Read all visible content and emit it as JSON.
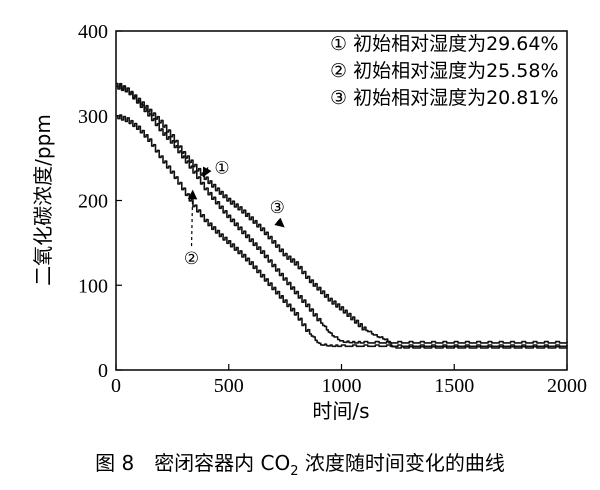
{
  "caption": {
    "figure_no": "图 8",
    "text_before_sub": "密闭容器内 CO",
    "subscript": "2",
    "text_after_sub": " 浓度随时间变化的曲线"
  },
  "chart_data": {
    "type": "line",
    "xlabel": "时间/s",
    "ylabel": "二氧化碳浓度/ppm",
    "xlim": [
      0,
      2000
    ],
    "ylim": [
      0,
      400
    ],
    "x_ticks": [
      0,
      500,
      1000,
      1500,
      2000
    ],
    "y_ticks": [
      0,
      100,
      200,
      300,
      400
    ],
    "legend_position": "top-right",
    "series": [
      {
        "name": "① 初始相对湿度为29.64%",
        "marker": "①",
        "points": [
          [
            0,
            335
          ],
          [
            50,
            330
          ],
          [
            100,
            315
          ],
          [
            150,
            300
          ],
          [
            200,
            282
          ],
          [
            250,
            268
          ],
          [
            300,
            250
          ],
          [
            350,
            232
          ],
          [
            400,
            212
          ],
          [
            450,
            196
          ],
          [
            500,
            180
          ],
          [
            550,
            166
          ],
          [
            600,
            152
          ],
          [
            650,
            138
          ],
          [
            700,
            122
          ],
          [
            750,
            106
          ],
          [
            800,
            90
          ],
          [
            850,
            75
          ],
          [
            900,
            58
          ],
          [
            950,
            42
          ],
          [
            1000,
            33
          ],
          [
            1050,
            32
          ],
          [
            1100,
            32
          ],
          [
            1200,
            32
          ],
          [
            1300,
            32
          ],
          [
            1400,
            32
          ],
          [
            1500,
            32
          ],
          [
            1600,
            32
          ],
          [
            1700,
            32
          ],
          [
            1800,
            32
          ],
          [
            1900,
            32
          ],
          [
            2000,
            32
          ]
        ]
      },
      {
        "name": "② 初始相对湿度为25.58%",
        "marker": "②",
        "points": [
          [
            0,
            300
          ],
          [
            50,
            295
          ],
          [
            100,
            285
          ],
          [
            150,
            270
          ],
          [
            200,
            250
          ],
          [
            250,
            232
          ],
          [
            300,
            212
          ],
          [
            350,
            192
          ],
          [
            400,
            175
          ],
          [
            450,
            162
          ],
          [
            500,
            150
          ],
          [
            550,
            138
          ],
          [
            600,
            125
          ],
          [
            650,
            110
          ],
          [
            700,
            95
          ],
          [
            750,
            80
          ],
          [
            800,
            65
          ],
          [
            850,
            45
          ],
          [
            900,
            30
          ],
          [
            950,
            28
          ],
          [
            1000,
            28
          ],
          [
            1100,
            28
          ],
          [
            1200,
            28
          ],
          [
            1300,
            28
          ],
          [
            1400,
            28
          ],
          [
            1500,
            28
          ],
          [
            1600,
            28
          ],
          [
            1700,
            28
          ],
          [
            1800,
            28
          ],
          [
            1900,
            28
          ],
          [
            2000,
            28
          ]
        ]
      },
      {
        "name": "③ 初始相对湿度为20.81%",
        "marker": "③",
        "points": [
          [
            0,
            338
          ],
          [
            50,
            330
          ],
          [
            100,
            318
          ],
          [
            150,
            305
          ],
          [
            200,
            292
          ],
          [
            250,
            275
          ],
          [
            300,
            255
          ],
          [
            350,
            240
          ],
          [
            400,
            225
          ],
          [
            450,
            212
          ],
          [
            500,
            200
          ],
          [
            550,
            190
          ],
          [
            600,
            178
          ],
          [
            650,
            165
          ],
          [
            700,
            150
          ],
          [
            750,
            135
          ],
          [
            800,
            125
          ],
          [
            850,
            108
          ],
          [
            900,
            95
          ],
          [
            950,
            82
          ],
          [
            1000,
            72
          ],
          [
            1050,
            60
          ],
          [
            1100,
            48
          ],
          [
            1150,
            40
          ],
          [
            1200,
            35
          ],
          [
            1230,
            26
          ],
          [
            1300,
            26
          ],
          [
            1400,
            26
          ],
          [
            1500,
            26
          ],
          [
            1600,
            26
          ],
          [
            1700,
            26
          ],
          [
            1800,
            26
          ],
          [
            1900,
            26
          ],
          [
            2000,
            26
          ]
        ]
      }
    ],
    "annotations": [
      {
        "label": "①",
        "at": [
          470,
          232
        ]
      },
      {
        "label": "②",
        "at": [
          335,
          125
        ]
      },
      {
        "label": "③",
        "at": [
          715,
          185
        ]
      }
    ]
  }
}
